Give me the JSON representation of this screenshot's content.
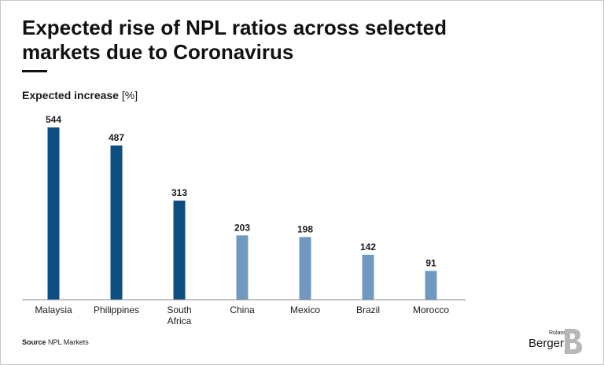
{
  "header": {
    "title": "Expected rise of NPL ratios across selected markets due to Coronavirus",
    "subtitle_main": "Expected increase",
    "subtitle_unit": " [%]"
  },
  "chart_data": {
    "type": "bar",
    "categories": [
      "Malaysia",
      "Philippines",
      "South Africa",
      "China",
      "Mexico",
      "Brazil",
      "Morocco"
    ],
    "category_lines": [
      [
        "Malaysia"
      ],
      [
        "Philippines"
      ],
      [
        "South",
        "Africa"
      ],
      [
        "China"
      ],
      [
        "Mexico"
      ],
      [
        "Brazil"
      ],
      [
        "Morocco"
      ]
    ],
    "values": [
      544,
      487,
      313,
      203,
      198,
      142,
      91
    ],
    "value_labels": [
      "544",
      "487",
      "313",
      "203",
      "198",
      "142",
      "91"
    ],
    "bar_colors": [
      "#0d4f82",
      "#0d4f82",
      "#0d4f82",
      "#7198bf",
      "#7198bf",
      "#7198bf",
      "#7198bf"
    ],
    "ylim": [
      0,
      544
    ],
    "grid": false,
    "legend": "none"
  },
  "footer": {
    "source_key": "Source",
    "source_text": " NPL Markets"
  },
  "logo": {
    "line1": "Roland",
    "line2": "Berger",
    "mark_color": "#b7b7b7"
  }
}
